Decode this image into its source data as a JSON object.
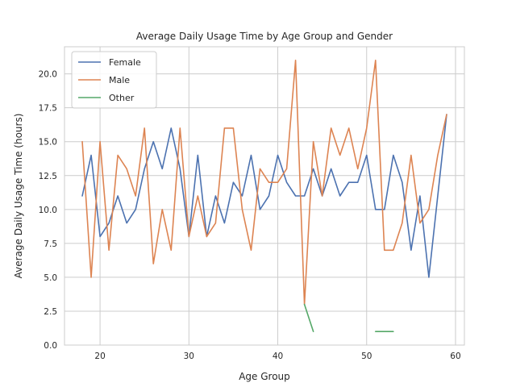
{
  "chart_data": {
    "type": "line",
    "title": "Average Daily Usage Time by Age Group and Gender",
    "xlabel": "Age Group",
    "ylabel": "Average Daily Usage Time (hours)",
    "xlim": [
      16,
      61
    ],
    "ylim": [
      0,
      22.0
    ],
    "xticks": [
      20,
      30,
      40,
      50,
      60
    ],
    "yticks": [
      0.0,
      2.5,
      5.0,
      7.5,
      10.0,
      12.5,
      15.0,
      17.5,
      20.0
    ],
    "ytick_labels": [
      "0.0",
      "2.5",
      "5.0",
      "7.5",
      "10.0",
      "12.5",
      "15.0",
      "17.5",
      "20.0"
    ],
    "grid": true,
    "legend_position": "top-left",
    "series": [
      {
        "name": "Female",
        "color": "#4c72b0",
        "x": [
          18,
          19,
          20,
          21,
          22,
          23,
          24,
          25,
          26,
          27,
          28,
          29,
          30,
          31,
          32,
          33,
          34,
          35,
          36,
          37,
          38,
          39,
          40,
          41,
          42,
          43,
          44,
          45,
          46,
          47,
          48,
          49,
          50,
          51,
          52,
          53,
          54,
          55,
          56,
          57,
          58,
          59
        ],
        "y": [
          11,
          14,
          8,
          9,
          11,
          9,
          10,
          13,
          15,
          13,
          16,
          13,
          8,
          14,
          8,
          11,
          9,
          12,
          11,
          14,
          10,
          11,
          14,
          12,
          11,
          11,
          13,
          11,
          13,
          11,
          12,
          12,
          14,
          10,
          10,
          14,
          12,
          7,
          11,
          5,
          11,
          17
        ]
      },
      {
        "name": "Male",
        "color": "#dd8452",
        "x": [
          18,
          19,
          20,
          21,
          22,
          23,
          24,
          25,
          26,
          27,
          28,
          29,
          30,
          31,
          32,
          33,
          34,
          35,
          36,
          37,
          38,
          39,
          40,
          41,
          42,
          43,
          44,
          45,
          46,
          47,
          48,
          49,
          50,
          51,
          52,
          53,
          54,
          55,
          56,
          57,
          58,
          59
        ],
        "y": [
          15,
          5,
          15,
          7,
          14,
          13,
          11,
          16,
          6,
          10,
          7,
          16,
          8,
          11,
          8,
          9,
          16,
          16,
          10,
          7,
          13,
          12,
          12,
          13,
          21,
          3,
          15,
          11,
          16,
          14,
          16,
          13,
          16,
          21,
          7,
          7,
          9,
          14,
          9,
          10,
          14,
          17
        ]
      },
      {
        "name": "Other",
        "color": "#55a868",
        "segments": [
          {
            "x": [
              43,
              44
            ],
            "y": [
              3,
              1
            ]
          },
          {
            "x": [
              51,
              52,
              53
            ],
            "y": [
              1,
              1,
              1
            ]
          }
        ]
      }
    ]
  }
}
